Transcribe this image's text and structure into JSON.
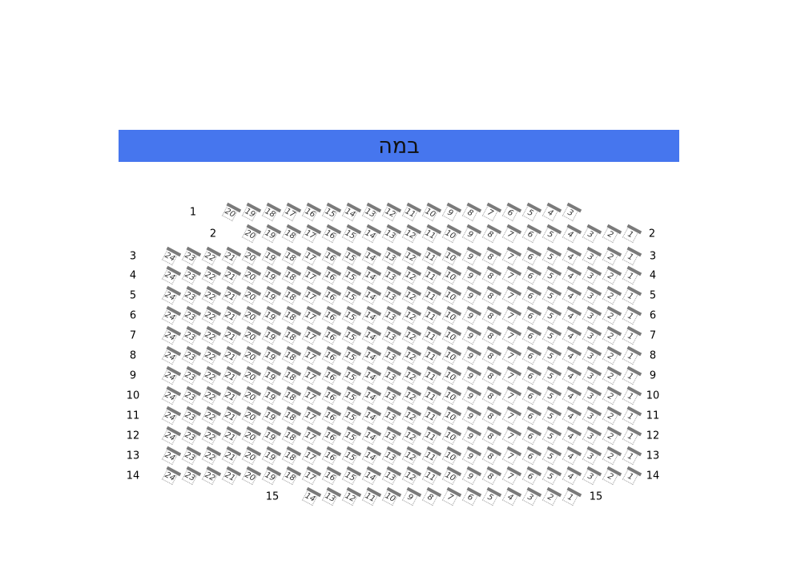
{
  "stage": {
    "label": "במה",
    "color": "#4676ee"
  },
  "rows": [
    {
      "row": "1",
      "seats_from": 20,
      "seats_to": 3,
      "label_left": "1",
      "label_right": ""
    },
    {
      "row": "2",
      "seats_from": 20,
      "seats_to": 1,
      "label_left": "2",
      "label_right": "2"
    },
    {
      "row": "3",
      "seats_from": 24,
      "seats_to": 1,
      "label_left": "3",
      "label_right": "3"
    },
    {
      "row": "4",
      "seats_from": 24,
      "seats_to": 1,
      "label_left": "4",
      "label_right": "4"
    },
    {
      "row": "5",
      "seats_from": 24,
      "seats_to": 1,
      "label_left": "5",
      "label_right": "5"
    },
    {
      "row": "6",
      "seats_from": 24,
      "seats_to": 1,
      "label_left": "6",
      "label_right": "6"
    },
    {
      "row": "7",
      "seats_from": 24,
      "seats_to": 1,
      "label_left": "7",
      "label_right": "7"
    },
    {
      "row": "8",
      "seats_from": 24,
      "seats_to": 1,
      "label_left": "8",
      "label_right": "8"
    },
    {
      "row": "9",
      "seats_from": 24,
      "seats_to": 1,
      "label_left": "9",
      "label_right": "9"
    },
    {
      "row": "10",
      "seats_from": 24,
      "seats_to": 1,
      "label_left": "10",
      "label_right": "10"
    },
    {
      "row": "11",
      "seats_from": 24,
      "seats_to": 1,
      "label_left": "11",
      "label_right": "11"
    },
    {
      "row": "12",
      "seats_from": 24,
      "seats_to": 1,
      "label_left": "12",
      "label_right": "12"
    },
    {
      "row": "13",
      "seats_from": 24,
      "seats_to": 1,
      "label_left": "13",
      "label_right": "13"
    },
    {
      "row": "14",
      "seats_from": 24,
      "seats_to": 1,
      "label_left": "14",
      "label_right": "14"
    },
    {
      "row": "15",
      "seats_from": 14,
      "seats_to": 1,
      "label_left": "15",
      "label_right": "15"
    }
  ]
}
